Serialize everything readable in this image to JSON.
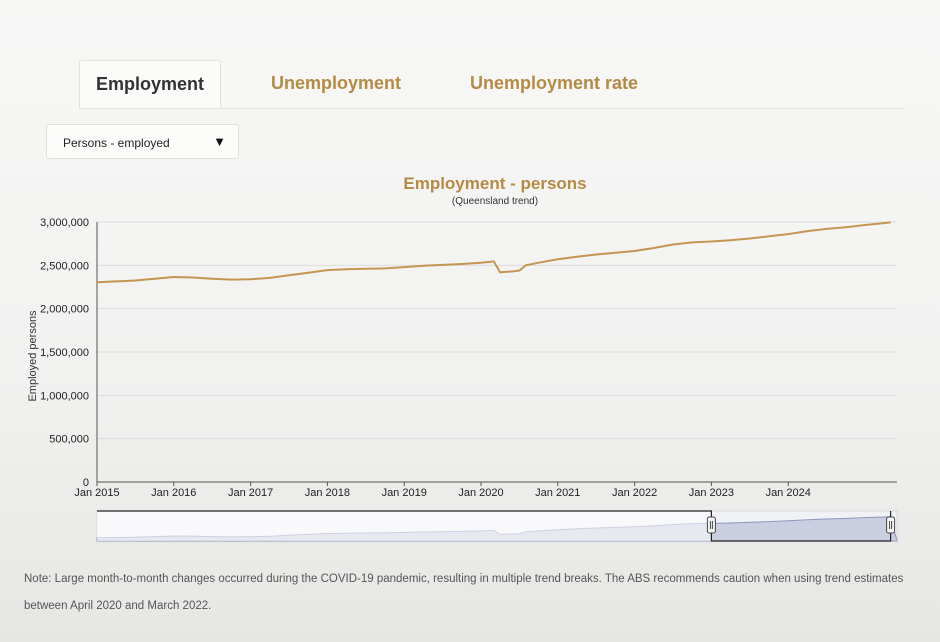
{
  "tabs": [
    {
      "label": "Employment",
      "active": true
    },
    {
      "label": "Unemployment",
      "active": false
    },
    {
      "label": "Unemployment rate",
      "active": false
    }
  ],
  "selector": {
    "value": "Persons - employed"
  },
  "colors": {
    "series": "#c59552",
    "accent": "#b38a46",
    "navigator_fill": "#a9b0cf"
  },
  "chart_data": {
    "type": "line",
    "title": "Employment - persons",
    "subtitle": "(Queensland trend)",
    "ylabel": "Employed persons",
    "xlabel": "",
    "ylim": [
      0,
      3000000
    ],
    "yticks": [
      0,
      500000,
      1000000,
      1500000,
      2000000,
      2500000,
      3000000
    ],
    "ytick_labels": [
      "0",
      "500,000",
      "1,000,000",
      "1,500,000",
      "2,000,000",
      "2,500,000",
      "3,000,000"
    ],
    "xticks": [
      "2015-01",
      "2016-01",
      "2017-01",
      "2018-01",
      "2019-01",
      "2020-01",
      "2021-01",
      "2022-01",
      "2023-01",
      "2024-01"
    ],
    "xtick_labels": [
      "Jan 2015",
      "Jan 2016",
      "Jan 2017",
      "Jan 2018",
      "Jan 2019",
      "Jan 2020",
      "Jan 2021",
      "Jan 2022",
      "Jan 2023",
      "Jan 2024"
    ],
    "grid": true,
    "series": [
      {
        "values": [
          [
            "2015-01",
            2305000
          ],
          [
            "2015-04",
            2315000
          ],
          [
            "2015-07",
            2325000
          ],
          [
            "2015-10",
            2345000
          ],
          [
            "2016-01",
            2365000
          ],
          [
            "2016-04",
            2360000
          ],
          [
            "2016-07",
            2345000
          ],
          [
            "2016-10",
            2335000
          ],
          [
            "2017-01",
            2340000
          ],
          [
            "2017-04",
            2355000
          ],
          [
            "2017-07",
            2385000
          ],
          [
            "2017-10",
            2415000
          ],
          [
            "2018-01",
            2445000
          ],
          [
            "2018-04",
            2455000
          ],
          [
            "2018-07",
            2460000
          ],
          [
            "2018-10",
            2465000
          ],
          [
            "2019-01",
            2480000
          ],
          [
            "2019-04",
            2495000
          ],
          [
            "2019-07",
            2505000
          ],
          [
            "2019-10",
            2515000
          ],
          [
            "2020-01",
            2530000
          ],
          [
            "2020-03",
            2545000
          ],
          [
            "2020-04",
            2420000
          ],
          [
            "2020-06",
            2430000
          ],
          [
            "2020-07",
            2440000
          ],
          [
            "2020-08",
            2500000
          ],
          [
            "2020-10",
            2530000
          ],
          [
            "2021-01",
            2570000
          ],
          [
            "2021-04",
            2600000
          ],
          [
            "2021-07",
            2625000
          ],
          [
            "2021-10",
            2645000
          ],
          [
            "2022-01",
            2665000
          ],
          [
            "2022-04",
            2700000
          ],
          [
            "2022-07",
            2740000
          ],
          [
            "2022-10",
            2765000
          ],
          [
            "2023-01",
            2775000
          ],
          [
            "2023-04",
            2790000
          ],
          [
            "2023-07",
            2810000
          ],
          [
            "2023-10",
            2835000
          ],
          [
            "2024-01",
            2860000
          ],
          [
            "2024-04",
            2895000
          ],
          [
            "2024-07",
            2920000
          ],
          [
            "2024-10",
            2940000
          ],
          [
            "2025-01",
            2965000
          ],
          [
            "2025-05",
            2995000
          ]
        ]
      }
    ],
    "navigator": {
      "selected_from": "2023-01",
      "selected_to": "2025-05"
    }
  },
  "note": "Note: Large month-to-month changes occurred during the COVID-19 pandemic, resulting in multiple trend breaks. The ABS recommends caution when using trend estimates between April 2020 and March 2022."
}
